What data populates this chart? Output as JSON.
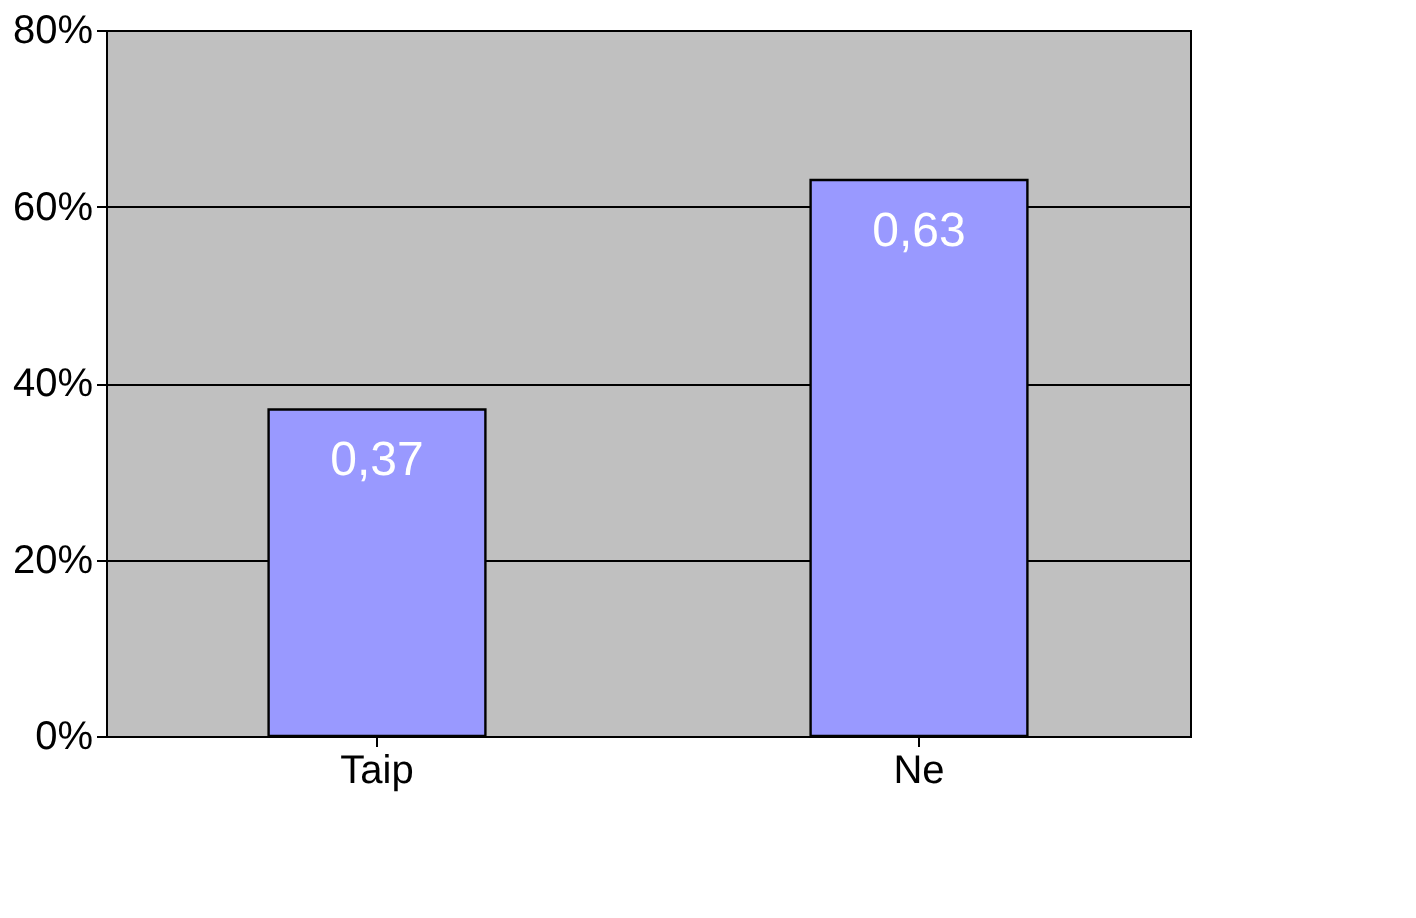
{
  "chart_data": {
    "type": "bar",
    "categories": [
      "Taip",
      "Ne"
    ],
    "values": [
      0.37,
      0.63
    ],
    "value_labels": [
      "0,37",
      "0,63"
    ],
    "color": "#9999ff",
    "ylim": [
      0,
      0.8
    ],
    "yticks": [
      {
        "value": 0,
        "label": "0%"
      },
      {
        "value": 0.2,
        "label": "20%"
      },
      {
        "value": 0.4,
        "label": "40%"
      },
      {
        "value": 0.6,
        "label": "60%"
      },
      {
        "value": 0.8,
        "label": "80%"
      }
    ],
    "grid": "y"
  }
}
